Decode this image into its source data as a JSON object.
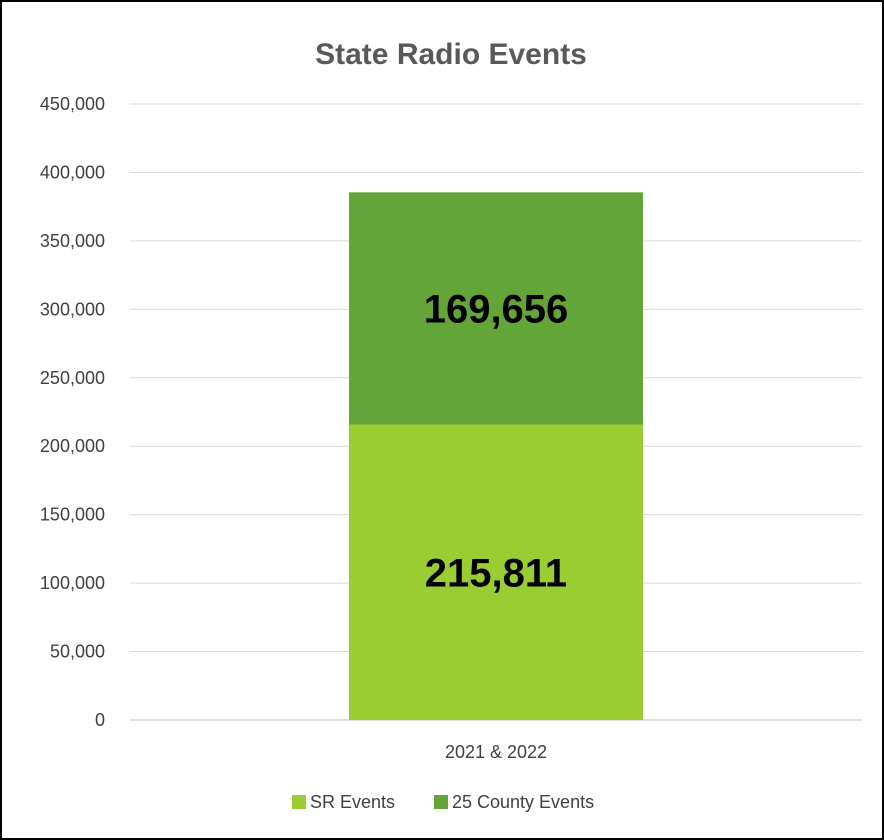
{
  "chart_data": {
    "type": "bar",
    "stacked": true,
    "title": "State Radio Events",
    "categories": [
      "2021 & 2022"
    ],
    "series": [
      {
        "name": "SR Events",
        "values": [
          215811
        ],
        "color": "#9ACD32",
        "data_labels": [
          "215,811"
        ]
      },
      {
        "name": "25 County Events",
        "values": [
          169656
        ],
        "color": "#64A53A",
        "data_labels": [
          "169,656"
        ]
      }
    ],
    "ylim": [
      0,
      450000
    ],
    "y_ticks": [
      0,
      50000,
      100000,
      150000,
      200000,
      250000,
      300000,
      350000,
      400000,
      450000
    ],
    "y_tick_labels": [
      "0",
      "50,000",
      "100,000",
      "150,000",
      "200,000",
      "250,000",
      "300,000",
      "350,000",
      "400,000",
      "450,000"
    ],
    "grid": true,
    "legend_position": "bottom",
    "xlabel": "",
    "ylabel": ""
  }
}
